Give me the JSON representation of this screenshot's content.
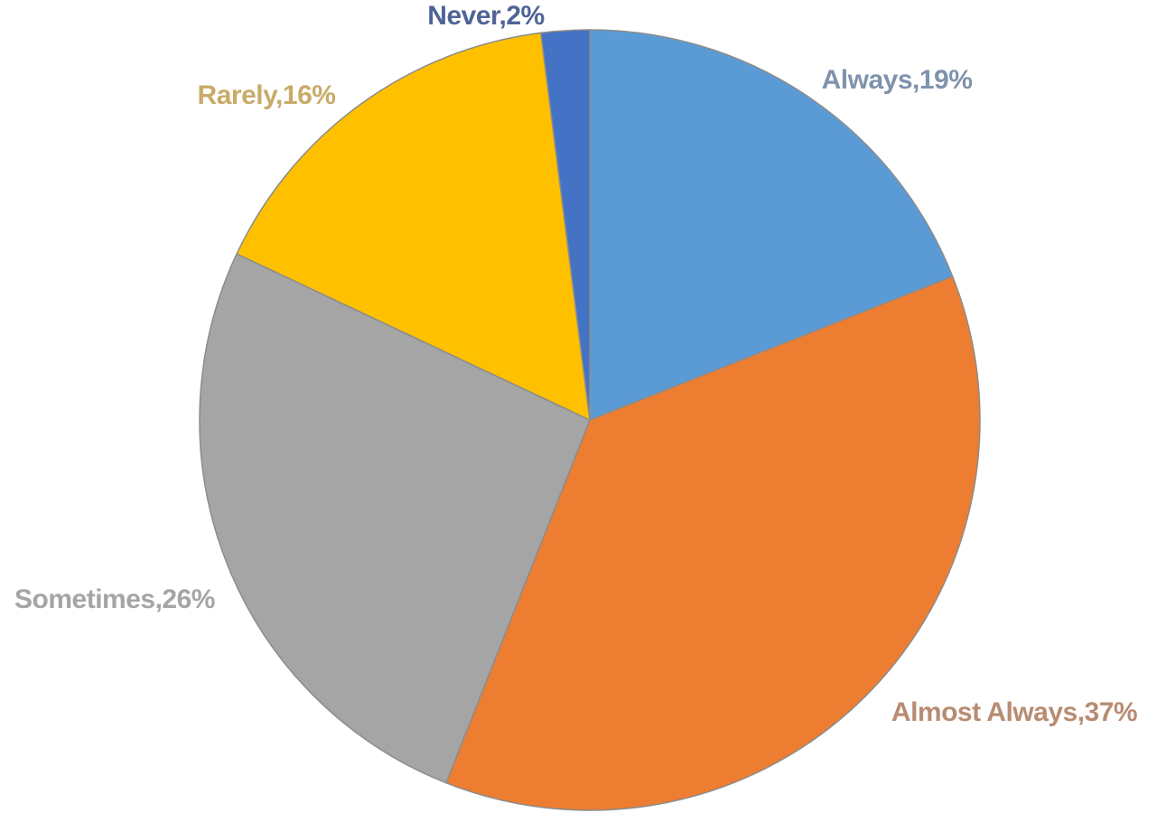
{
  "chart_data": {
    "type": "pie",
    "title": "",
    "slices": [
      {
        "label": "Always",
        "value": 19,
        "display": "Always,19%",
        "color": "#5b9bd5",
        "label_color": "#7f93ac"
      },
      {
        "label": "Almost Always",
        "value": 37,
        "display": "Almost Always,37%",
        "color": "#ed7d31",
        "label_color": "#b88c72"
      },
      {
        "label": "Sometimes",
        "value": 26,
        "display": "Sometimes,26%",
        "color": "#a5a5a5",
        "label_color": "#a5a5a5"
      },
      {
        "label": "Rarely",
        "value": 16,
        "display": "Rarely,16%",
        "color": "#ffc000",
        "label_color": "#c8ab68"
      },
      {
        "label": "Never",
        "value": 2,
        "display": "Never,2%",
        "color": "#4472c4",
        "label_color": "#4f6496"
      }
    ],
    "legend": "none",
    "data_labels": "outside"
  }
}
